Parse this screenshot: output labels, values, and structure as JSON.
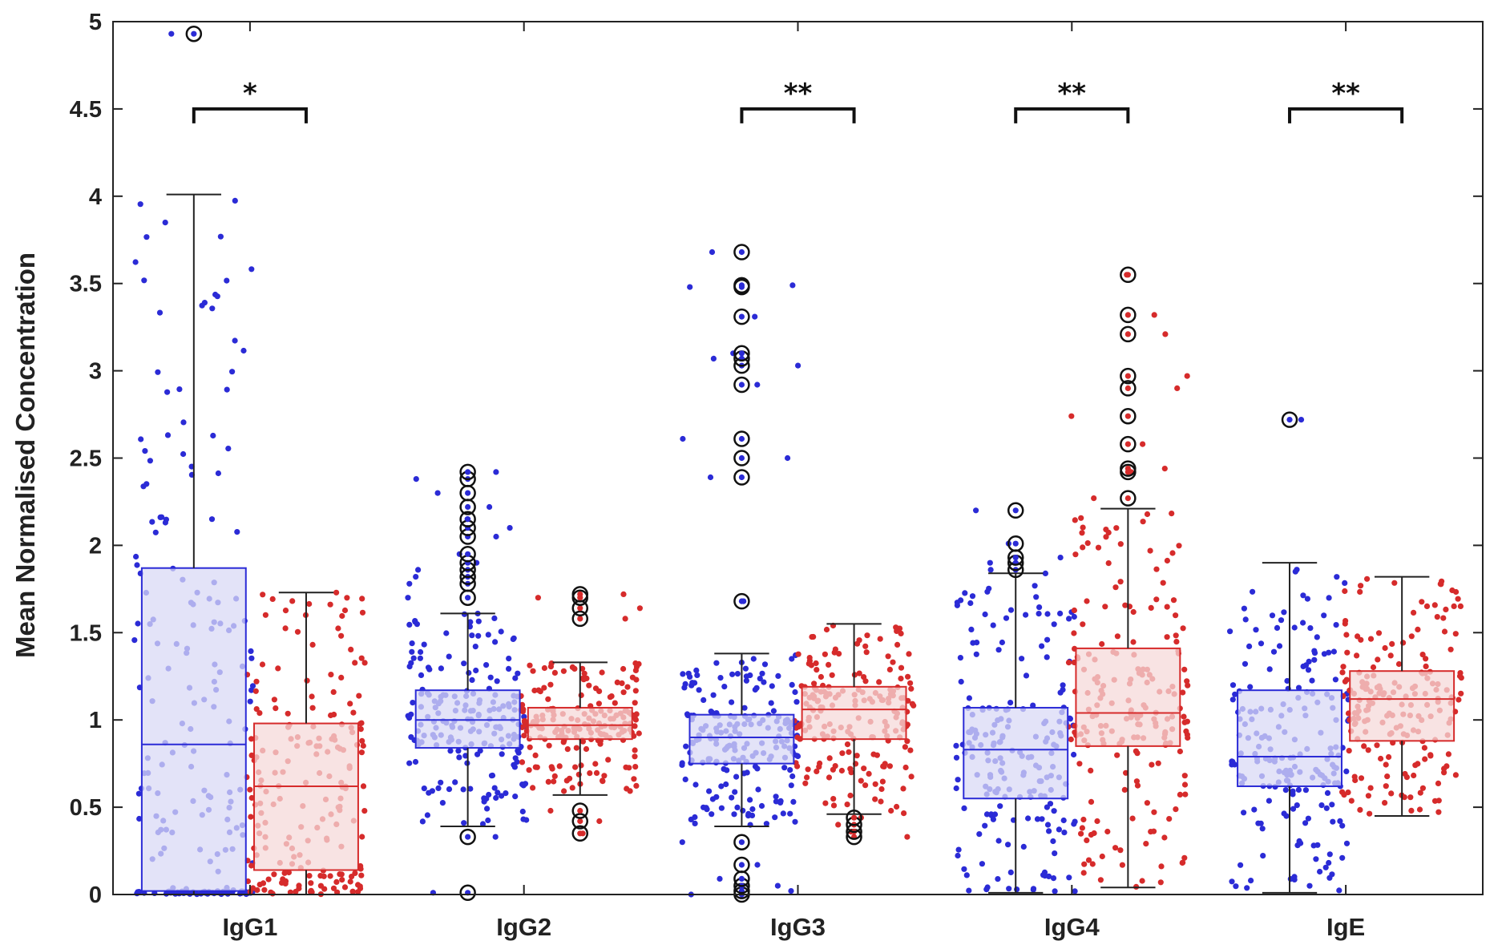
{
  "chart_data": {
    "type": "box",
    "ylabel": "Mean Normalised Concentration",
    "xlabel": "",
    "title": "",
    "ylim": [
      0,
      5
    ],
    "yticks": [
      "0",
      "0.5",
      "1",
      "1.5",
      "2",
      "2.5",
      "3",
      "3.5",
      "4",
      "4.5",
      "5"
    ],
    "categories": [
      "IgG1",
      "IgG2",
      "IgG3",
      "IgG4",
      "IgE"
    ],
    "colors": {
      "series_a": "#2b2bd6",
      "series_a_fill": "#d9d9f5",
      "series_b": "#d62b2b",
      "series_b_fill": "#f5d9d9",
      "whisker": "#222222"
    },
    "series": [
      {
        "boxes": [
          {
            "q1": 0.02,
            "median": 0.86,
            "q3": 1.87,
            "whisker_low": 0.0,
            "whisker_high": 4.01,
            "outliers": [
              4.93
            ]
          },
          {
            "q1": 0.84,
            "median": 1.0,
            "q3": 1.17,
            "whisker_low": 0.39,
            "whisker_high": 1.61,
            "outliers": [
              0.01,
              0.33,
              1.7,
              1.78,
              1.82,
              1.86,
              1.9,
              1.95,
              2.05,
              2.1,
              2.15,
              2.22,
              2.3,
              2.38,
              2.42
            ]
          },
          {
            "q1": 0.75,
            "median": 0.9,
            "q3": 1.03,
            "whisker_low": 0.39,
            "whisker_high": 1.38,
            "outliers": [
              0.0,
              0.02,
              0.05,
              0.09,
              0.17,
              0.3,
              1.68,
              2.39,
              2.5,
              2.61,
              2.92,
              3.03,
              3.07,
              3.1,
              3.31,
              3.48,
              3.49,
              3.68
            ]
          },
          {
            "q1": 0.55,
            "median": 0.83,
            "q3": 1.07,
            "whisker_low": 0.01,
            "whisker_high": 1.84,
            "outliers": [
              1.86,
              1.9,
              1.93,
              2.01,
              2.2
            ]
          },
          {
            "q1": 0.62,
            "median": 0.79,
            "q3": 1.17,
            "whisker_low": 0.01,
            "whisker_high": 1.9,
            "outliers": [
              2.72
            ]
          }
        ]
      },
      {
        "boxes": [
          {
            "q1": 0.14,
            "median": 0.62,
            "q3": 0.98,
            "whisker_low": 0.0,
            "whisker_high": 1.73,
            "outliers": []
          },
          {
            "q1": 0.89,
            "median": 0.97,
            "q3": 1.07,
            "whisker_low": 0.57,
            "whisker_high": 1.33,
            "outliers": [
              0.35,
              0.42,
              0.48,
              1.58,
              1.64,
              1.7,
              1.72
            ]
          },
          {
            "q1": 0.89,
            "median": 1.06,
            "q3": 1.19,
            "whisker_low": 0.46,
            "whisker_high": 1.55,
            "outliers": [
              0.33,
              0.36,
              0.4,
              0.44
            ]
          },
          {
            "q1": 0.85,
            "median": 1.04,
            "q3": 1.41,
            "whisker_low": 0.04,
            "whisker_high": 2.21,
            "outliers": [
              2.27,
              2.42,
              2.44,
              2.58,
              2.74,
              2.9,
              2.97,
              3.21,
              3.32,
              3.55
            ]
          },
          {
            "q1": 0.88,
            "median": 1.12,
            "q3": 1.28,
            "whisker_low": 0.45,
            "whisker_high": 1.82,
            "outliers": []
          }
        ]
      }
    ],
    "significance": [
      {
        "category": "IgG1",
        "label": "*",
        "y": 4.5
      },
      {
        "category": "IgG3",
        "label": "**",
        "y": 4.5
      },
      {
        "category": "IgG4",
        "label": "**",
        "y": 4.5
      },
      {
        "category": "IgE",
        "label": "**",
        "y": 4.5
      }
    ],
    "grid": false,
    "legend": "none"
  }
}
